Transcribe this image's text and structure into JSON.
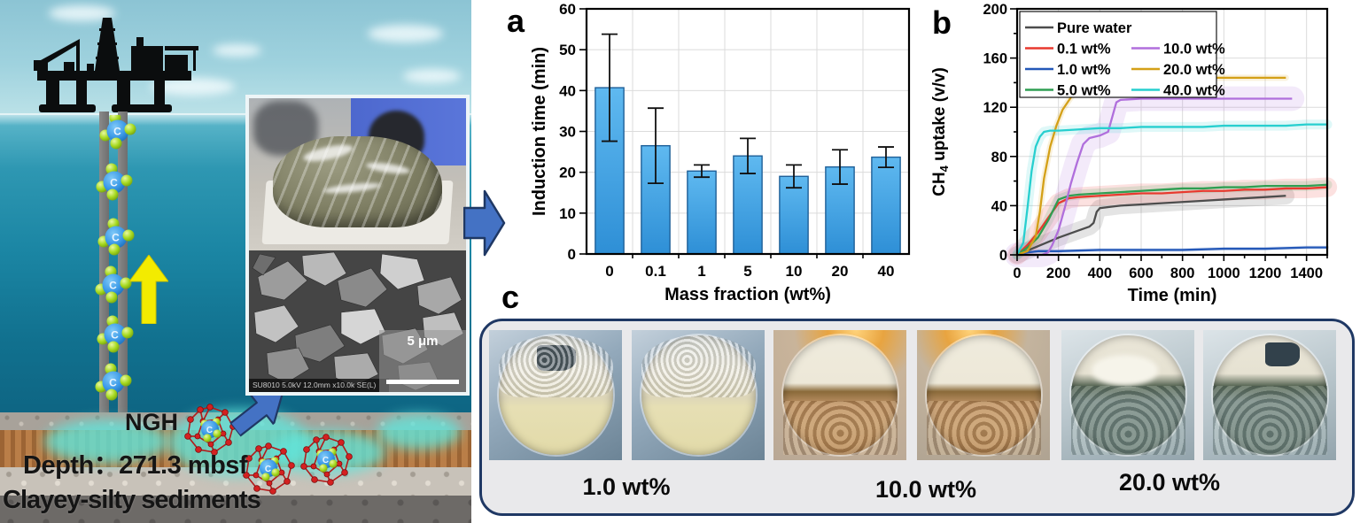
{
  "panels": {
    "a": "a",
    "b": "b",
    "c": "c"
  },
  "illustration": {
    "ngh_label": "NGH",
    "depth_label": "Depth：271.3 mbsf",
    "sediment_label": "Clayey-silty sediments",
    "molecule_symbol": "C",
    "sem_meta": "SU8010 5.0kV 12.0mm x10.0k SE(L)",
    "sem_scale_label": "5 μm"
  },
  "panel_c": {
    "labels": [
      "1.0 wt%",
      "10.0 wt%",
      "20.0 wt%"
    ]
  },
  "colors": {
    "arrow_fill": "#4472C4",
    "arrow_outline": "#1F3864",
    "panel_c_border": "#1F3864"
  },
  "chart_data": [
    {
      "type": "bar",
      "title": "",
      "categories": [
        "0",
        "0.1",
        "1",
        "5",
        "10",
        "20",
        "40"
      ],
      "values": [
        40.7,
        26.5,
        20.3,
        24.0,
        19.0,
        21.3,
        23.7
      ],
      "errors": [
        13.1,
        9.2,
        1.5,
        4.3,
        2.8,
        4.2,
        2.5
      ],
      "xlabel": "Mass fraction (wt%)",
      "ylabel": "Induction time (min)",
      "ylim": [
        0,
        60
      ],
      "ytick_step": 10,
      "grid": true,
      "bar_color_top": "#5FB9F0",
      "bar_color_bottom": "#2E8FD6",
      "bar_edge": "#1E5F98"
    },
    {
      "type": "line",
      "title": "",
      "xlabel": "Time (min)",
      "ylabel": "CH4 uptake (v/v)",
      "ylabel_parts": {
        "main": "CH",
        "sub": "4",
        "rest": " uptake (v/v)"
      },
      "xlim": [
        0,
        1500
      ],
      "ylim": [
        0,
        200
      ],
      "xtick_step": 200,
      "xtick_minor": 100,
      "ytick_step": 40,
      "ytick_minor": 20,
      "grid": true,
      "legend_position": "top-left",
      "legend_col2_start_row": 1,
      "series": [
        {
          "name": "Pure water",
          "color": "#4D4D4D",
          "band": 7,
          "x": [
            0,
            100,
            200,
            300,
            350,
            370,
            385,
            400,
            450,
            500,
            600,
            700,
            800,
            900,
            1000,
            1100,
            1200,
            1300
          ],
          "y": [
            0,
            7,
            14,
            20,
            23,
            26,
            35,
            38,
            39,
            40,
            41,
            42,
            43,
            44,
            45,
            46,
            47,
            48
          ]
        },
        {
          "name": "0.1 wt%",
          "color": "#E8392F",
          "band": 8,
          "x": [
            0,
            50,
            100,
            150,
            200,
            250,
            300,
            400,
            500,
            600,
            700,
            800,
            900,
            1000,
            1100,
            1200,
            1300,
            1400,
            1500
          ],
          "y": [
            0,
            8,
            18,
            30,
            42,
            46,
            47,
            48,
            49,
            50,
            50,
            51,
            52,
            52,
            53,
            53,
            54,
            54,
            55
          ]
        },
        {
          "name": "1.0 wt%",
          "color": "#2458B8",
          "band": 1.5,
          "x": [
            0,
            50,
            100,
            200,
            400,
            600,
            800,
            1000,
            1200,
            1400,
            1500
          ],
          "y": [
            0,
            2,
            3,
            3,
            4,
            4,
            4,
            5,
            5,
            6,
            6
          ]
        },
        {
          "name": "5.0 wt%",
          "color": "#2F9E52",
          "band": 4,
          "x": [
            0,
            50,
            100,
            150,
            200,
            250,
            300,
            400,
            500,
            600,
            700,
            800,
            900,
            1000,
            1100,
            1200,
            1300,
            1400,
            1500
          ],
          "y": [
            0,
            6,
            14,
            28,
            45,
            48,
            49,
            50,
            51,
            52,
            53,
            54,
            54,
            55,
            55,
            56,
            56,
            56,
            57
          ]
        },
        {
          "name": "10.0 wt%",
          "color": "#B06FDC",
          "band": 10,
          "x": [
            0,
            120,
            150,
            170,
            200,
            230,
            260,
            290,
            320,
            350,
            400,
            440,
            460,
            480,
            500,
            600,
            800,
            1000,
            1200,
            1330
          ],
          "y": [
            0,
            0,
            2,
            8,
            20,
            38,
            58,
            75,
            90,
            95,
            97,
            100,
            112,
            124,
            126,
            127,
            127,
            127,
            127,
            127
          ]
        },
        {
          "name": "20.0 wt%",
          "color": "#D4A017",
          "band": 2.5,
          "x": [
            0,
            50,
            90,
            110,
            130,
            160,
            190,
            220,
            260,
            300,
            350,
            400,
            450,
            500,
            600,
            700,
            800,
            1000,
            1200,
            1300
          ],
          "y": [
            0,
            3,
            15,
            35,
            62,
            88,
            105,
            118,
            128,
            135,
            139,
            141,
            142,
            143,
            144,
            144,
            144,
            144,
            144,
            144
          ]
        },
        {
          "name": "40.0 wt%",
          "color": "#27CFCF",
          "band": 4,
          "x": [
            0,
            30,
            50,
            70,
            90,
            110,
            130,
            160,
            200,
            300,
            400,
            500,
            600,
            700,
            800,
            900,
            1000,
            1100,
            1200,
            1300,
            1400,
            1500
          ],
          "y": [
            0,
            10,
            38,
            68,
            88,
            96,
            100,
            101,
            101,
            102,
            103,
            103,
            104,
            104,
            104,
            104,
            105,
            105,
            105,
            105,
            106,
            106
          ]
        }
      ]
    }
  ]
}
